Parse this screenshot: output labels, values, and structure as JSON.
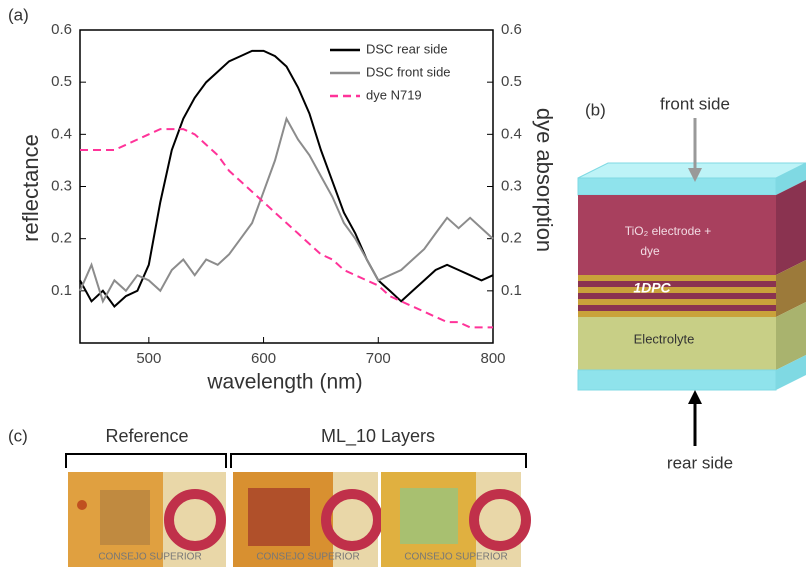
{
  "chart_data": {
    "type": "line",
    "panel_label": "(a)",
    "xlabel": "wavelength (nm)",
    "ylabel": "reflectance",
    "y2label": "dye absorption",
    "x": [
      440,
      450,
      460,
      470,
      480,
      490,
      500,
      510,
      520,
      530,
      540,
      550,
      560,
      570,
      580,
      590,
      600,
      610,
      620,
      630,
      640,
      650,
      660,
      670,
      680,
      690,
      700,
      710,
      720,
      730,
      740,
      750,
      760,
      770,
      780,
      790,
      800
    ],
    "series": [
      {
        "name": "DSC rear side",
        "color": "#000000",
        "dashed": false,
        "values": [
          0.12,
          0.08,
          0.1,
          0.07,
          0.09,
          0.1,
          0.15,
          0.27,
          0.37,
          0.43,
          0.47,
          0.5,
          0.52,
          0.54,
          0.55,
          0.56,
          0.56,
          0.55,
          0.53,
          0.49,
          0.44,
          0.37,
          0.31,
          0.25,
          0.21,
          0.16,
          0.12,
          0.1,
          0.08,
          0.1,
          0.12,
          0.14,
          0.15,
          0.14,
          0.13,
          0.12,
          0.13
        ]
      },
      {
        "name": "DSC front side",
        "color": "#8c8c8c",
        "dashed": false,
        "values": [
          0.1,
          0.15,
          0.08,
          0.12,
          0.1,
          0.13,
          0.12,
          0.1,
          0.14,
          0.16,
          0.13,
          0.16,
          0.15,
          0.17,
          0.2,
          0.23,
          0.29,
          0.35,
          0.43,
          0.39,
          0.36,
          0.32,
          0.28,
          0.23,
          0.2,
          0.16,
          0.12,
          0.13,
          0.14,
          0.16,
          0.18,
          0.21,
          0.24,
          0.22,
          0.24,
          0.22,
          0.2
        ]
      },
      {
        "name": "dye N719",
        "color": "#ff3399",
        "dashed": true,
        "axis": "y2",
        "values": [
          0.37,
          0.37,
          0.37,
          0.37,
          0.38,
          0.39,
          0.4,
          0.41,
          0.41,
          0.41,
          0.4,
          0.38,
          0.36,
          0.33,
          0.31,
          0.29,
          0.27,
          0.25,
          0.23,
          0.21,
          0.19,
          0.17,
          0.16,
          0.14,
          0.13,
          0.12,
          0.11,
          0.09,
          0.08,
          0.07,
          0.06,
          0.05,
          0.04,
          0.04,
          0.03,
          0.03,
          0.03
        ]
      }
    ],
    "xlim": [
      440,
      800
    ],
    "xticks": [
      500,
      600,
      700,
      800
    ],
    "ylim": [
      0,
      0.6
    ],
    "yticks": [
      0.1,
      0.2,
      0.3,
      0.4,
      0.5,
      0.6
    ],
    "y2lim": [
      0,
      0.6
    ],
    "y2ticks": [
      0.1,
      0.2,
      0.3,
      0.4,
      0.5,
      0.6
    ],
    "legend": "upper right"
  },
  "diagram": {
    "panel_label": "(b)",
    "front": "front side",
    "rear": "rear side",
    "layer1_line1": "TiO₂ electrode +",
    "layer1_line2": "dye",
    "layer2": "1DPC",
    "layer3": "Electrolyte"
  },
  "photos": {
    "panel_label": "(c)",
    "group1": "Reference",
    "group2": "ML_10 Layers",
    "captions": [
      "CONSEJO SUPERIOR",
      "CONSEJO SUPERIOR",
      "CONSEJO SUPERIOR"
    ]
  }
}
